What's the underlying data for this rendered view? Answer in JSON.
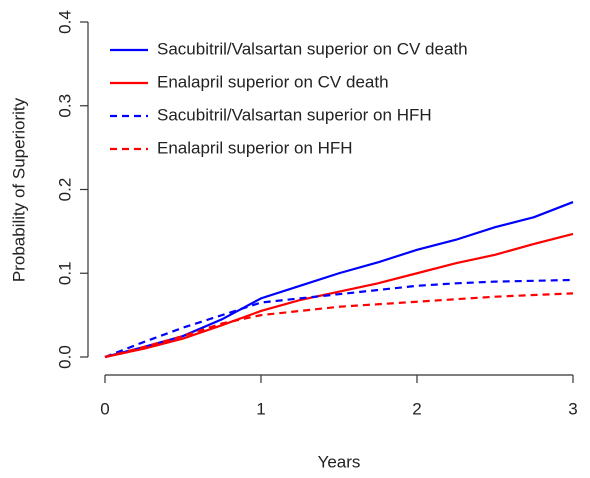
{
  "chart_data": {
    "type": "line",
    "xlabel": "Years",
    "ylabel": "Probability of Superiority",
    "x": [
      0,
      0.25,
      0.5,
      0.75,
      1,
      1.25,
      1.5,
      1.75,
      2,
      2.25,
      2.5,
      2.75,
      3
    ],
    "series": [
      {
        "name": "Sacubitril/Valsartan superior on CV death",
        "color": "#0000ff",
        "dashed": false,
        "values": [
          0,
          0.012,
          0.025,
          0.045,
          0.07,
          0.085,
          0.1,
          0.113,
          0.128,
          0.14,
          0.155,
          0.167,
          0.185
        ]
      },
      {
        "name": "Enalapril superior on CV death",
        "color": "#ff0000",
        "dashed": false,
        "values": [
          0,
          0.01,
          0.022,
          0.038,
          0.055,
          0.068,
          0.078,
          0.088,
          0.1,
          0.112,
          0.122,
          0.135,
          0.147
        ]
      },
      {
        "name": "Sacubitril/Valsartan superior on HFH",
        "color": "#0000ff",
        "dashed": true,
        "values": [
          0,
          0.018,
          0.035,
          0.05,
          0.065,
          0.07,
          0.075,
          0.08,
          0.085,
          0.088,
          0.09,
          0.091,
          0.092
        ]
      },
      {
        "name": "Enalapril superior on HFH",
        "color": "#ff0000",
        "dashed": true,
        "values": [
          0,
          0.012,
          0.025,
          0.04,
          0.05,
          0.055,
          0.06,
          0.063,
          0.066,
          0.069,
          0.072,
          0.074,
          0.076
        ]
      }
    ],
    "xlim": [
      0,
      3
    ],
    "xticks": [
      0,
      1,
      2,
      3
    ],
    "ylim": [
      0,
      0.4
    ],
    "yticks": [
      {
        "value": 0,
        "label": "0.0"
      },
      0.1,
      0.2,
      0.3,
      0.4
    ],
    "legend": "upper left",
    "grid": false
  }
}
